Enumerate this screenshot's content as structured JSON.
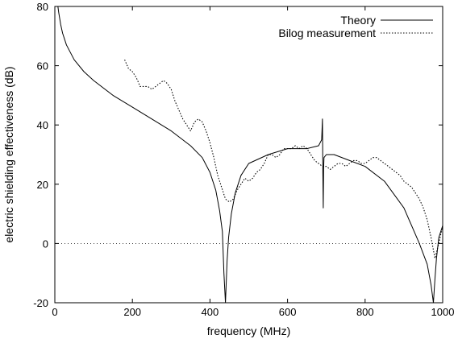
{
  "chart_data": {
    "type": "line",
    "title": "",
    "xlabel": "frequency (MHz)",
    "ylabel": "electric shielding effectiveness (dB)",
    "xlim": [
      0,
      1000
    ],
    "ylim": [
      -20,
      80
    ],
    "x_ticks": [
      0,
      200,
      400,
      600,
      800,
      1000
    ],
    "y_ticks": [
      -20,
      0,
      20,
      40,
      60,
      80
    ],
    "x_tick_labels": [
      "0",
      "200",
      "400",
      "600",
      "800",
      "1000"
    ],
    "y_tick_labels": [
      "-20",
      "0",
      "20",
      "40",
      "60",
      "80"
    ],
    "grid": false,
    "legend_position": "top-right",
    "reference_line": {
      "y": 0,
      "style": "dotted"
    },
    "series": [
      {
        "name": "Theory",
        "style": "solid",
        "x": [
          8,
          10,
          15,
          20,
          30,
          50,
          75,
          100,
          150,
          200,
          250,
          300,
          350,
          380,
          400,
          415,
          425,
          432,
          436,
          440,
          444,
          448,
          455,
          465,
          480,
          500,
          550,
          600,
          650,
          680,
          688,
          690,
          691,
          692,
          693,
          694,
          700,
          720,
          760,
          800,
          850,
          900,
          940,
          960,
          970,
          976,
          980,
          984,
          990,
          1000
        ],
        "y": [
          80,
          78,
          74,
          71,
          67,
          62,
          58,
          55,
          50,
          46,
          42,
          38,
          33,
          29,
          24,
          18,
          11,
          4,
          -10,
          -20,
          -6,
          2,
          10,
          17,
          23,
          27,
          30,
          32,
          32,
          33,
          35,
          42,
          24,
          12,
          25,
          29,
          30,
          30,
          28,
          26,
          21,
          12,
          0,
          -7,
          -14,
          -20,
          -12,
          -5,
          2,
          6
        ]
      },
      {
        "name": "Bilog measurement",
        "style": "dotted",
        "x": [
          180,
          190,
          200,
          210,
          220,
          230,
          240,
          250,
          260,
          270,
          280,
          290,
          300,
          310,
          320,
          330,
          340,
          350,
          360,
          370,
          380,
          390,
          400,
          410,
          420,
          430,
          440,
          450,
          460,
          470,
          480,
          490,
          500,
          510,
          520,
          530,
          540,
          550,
          560,
          570,
          580,
          590,
          600,
          610,
          620,
          630,
          640,
          650,
          660,
          670,
          680,
          690,
          700,
          710,
          720,
          730,
          740,
          750,
          760,
          770,
          780,
          790,
          800,
          810,
          820,
          830,
          840,
          850,
          860,
          870,
          880,
          890,
          900,
          910,
          920,
          930,
          940,
          950,
          960,
          970,
          980,
          990,
          1000
        ],
        "y": [
          62,
          59,
          58,
          56,
          53,
          53,
          53,
          52,
          53,
          54,
          55,
          54,
          52,
          48,
          45,
          42,
          40,
          38,
          41,
          42,
          41,
          38,
          34,
          29,
          23,
          19,
          15,
          14,
          15,
          18,
          20,
          22,
          21,
          22,
          24,
          25,
          27,
          30,
          30,
          29,
          30,
          32,
          32,
          32,
          33,
          32,
          33,
          32,
          30,
          28,
          27,
          26,
          26,
          25,
          26,
          27,
          27,
          26,
          27,
          28,
          28,
          27,
          27,
          28,
          29,
          29,
          28,
          27,
          26,
          25,
          24,
          23,
          21,
          20,
          19,
          17,
          15,
          12,
          8,
          2,
          -5,
          0,
          6
        ]
      }
    ]
  }
}
